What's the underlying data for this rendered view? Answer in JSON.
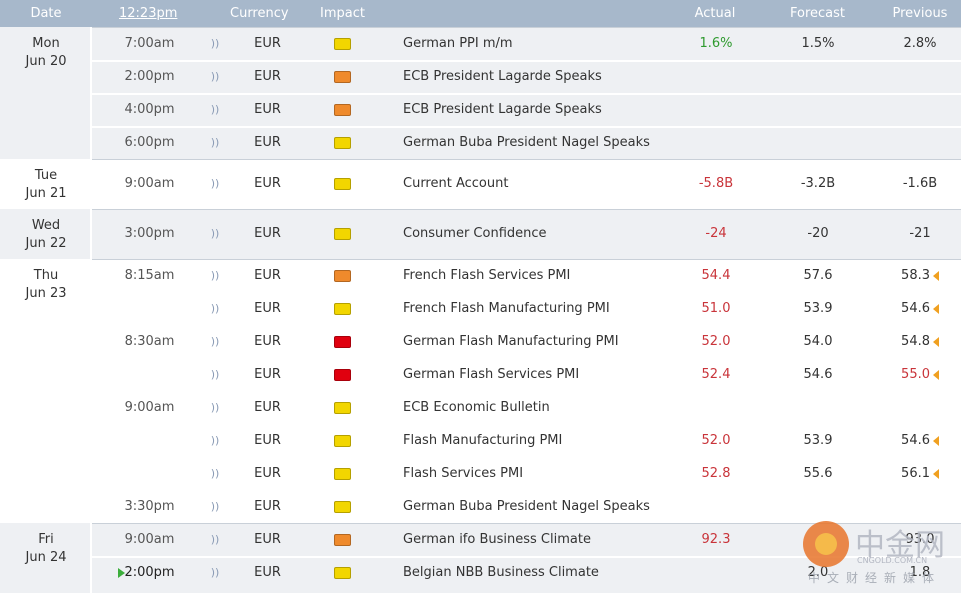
{
  "header": {
    "date": "Date",
    "time": "12:23pm",
    "currency": "Currency",
    "impact": "Impact",
    "actual": "Actual",
    "forecast": "Forecast",
    "previous": "Previous"
  },
  "days": [
    {
      "day": "Mon",
      "date": "Jun 20",
      "shade": true,
      "events": [
        {
          "time": "7:00am",
          "currency": "EUR",
          "impact": "#f2d600",
          "event": "German PPI m/m",
          "actual": "1.6%",
          "actual_color": "#2e9a2e",
          "forecast": "1.5%",
          "previous": "2.8%"
        },
        {
          "time": "2:00pm",
          "currency": "EUR",
          "impact": "#ef8a2c",
          "event": "ECB President Lagarde Speaks"
        },
        {
          "time": "4:00pm",
          "currency": "EUR",
          "impact": "#ef8a2c",
          "event": "ECB President Lagarde Speaks"
        },
        {
          "time": "6:00pm",
          "currency": "EUR",
          "impact": "#f2d600",
          "event": "German Buba President Nagel Speaks"
        }
      ]
    },
    {
      "day": "Tue",
      "date": "Jun 21",
      "shade": false,
      "events": [
        {
          "time": "9:00am",
          "currency": "EUR",
          "impact": "#f2d600",
          "event": "Current Account",
          "actual": "-5.8B",
          "actual_color": "#c9343a",
          "forecast": "-3.2B",
          "previous": "-1.6B"
        }
      ]
    },
    {
      "day": "Wed",
      "date": "Jun 22",
      "shade": true,
      "events": [
        {
          "time": "3:00pm",
          "currency": "EUR",
          "impact": "#f2d600",
          "event": "Consumer Confidence",
          "actual": "-24",
          "actual_color": "#c9343a",
          "forecast": "-20",
          "previous": "-21"
        }
      ]
    },
    {
      "day": "Thu",
      "date": "Jun 23",
      "shade": false,
      "events": [
        {
          "time": "8:15am",
          "currency": "EUR",
          "impact": "#ef8a2c",
          "event": "French Flash Services PMI",
          "actual": "54.4",
          "actual_color": "#c9343a",
          "forecast": "57.6",
          "previous": "58.3",
          "revised": true
        },
        {
          "currency": "EUR",
          "impact": "#f2d600",
          "event": "French Flash Manufacturing PMI",
          "actual": "51.0",
          "actual_color": "#c9343a",
          "forecast": "53.9",
          "previous": "54.6",
          "revised": true
        },
        {
          "time": "8:30am",
          "currency": "EUR",
          "impact": "#e0000f",
          "event": "German Flash Manufacturing PMI",
          "actual": "52.0",
          "actual_color": "#c9343a",
          "forecast": "54.0",
          "previous": "54.8",
          "revised": true
        },
        {
          "currency": "EUR",
          "impact": "#e0000f",
          "event": "German Flash Services PMI",
          "actual": "52.4",
          "actual_color": "#c9343a",
          "forecast": "54.6",
          "previous": "55.0",
          "previous_color": "#c9343a",
          "revised": true
        },
        {
          "time": "9:00am",
          "currency": "EUR",
          "impact": "#f2d600",
          "event": "ECB Economic Bulletin"
        },
        {
          "currency": "EUR",
          "impact": "#f2d600",
          "event": "Flash Manufacturing PMI",
          "actual": "52.0",
          "actual_color": "#c9343a",
          "forecast": "53.9",
          "previous": "54.6",
          "revised": true
        },
        {
          "currency": "EUR",
          "impact": "#f2d600",
          "event": "Flash Services PMI",
          "actual": "52.8",
          "actual_color": "#c9343a",
          "forecast": "55.6",
          "previous": "56.1",
          "revised": true
        },
        {
          "time": "3:30pm",
          "currency": "EUR",
          "impact": "#f2d600",
          "event": "German Buba President Nagel Speaks"
        }
      ]
    },
    {
      "day": "Fri",
      "date": "Jun 24",
      "shade": true,
      "events": [
        {
          "time": "9:00am",
          "currency": "EUR",
          "impact": "#ef8a2c",
          "event": "German ifo Business Climate",
          "actual": "92.3",
          "actual_color": "#c9343a",
          "previous": "93.0"
        },
        {
          "time": "2:00pm",
          "upcoming": true,
          "currency": "EUR",
          "impact": "#f2d600",
          "event": "Belgian NBB Business Climate",
          "forecast": "2.0",
          "previous": "1.8"
        }
      ]
    }
  ],
  "watermark": {
    "name": "中金网",
    "url": "CNGOLD.COM.CN",
    "tagline": "中文财经新媒体"
  }
}
